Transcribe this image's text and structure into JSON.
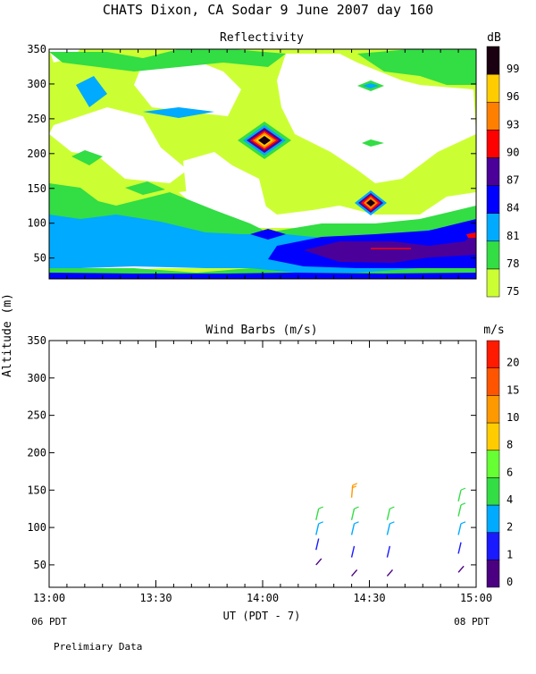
{
  "header": {
    "title": "CHATS Dixon, CA  Sodar   9 June 2007   day 160",
    "preliminary": "Prelimiary Data"
  },
  "chart_data": [
    {
      "type": "heatmap",
      "title": "Reflectivity",
      "ylabel": "Altitude (m)",
      "ylim": [
        20,
        350
      ],
      "yticks": [
        "50",
        "100",
        "150",
        "200",
        "250",
        "300",
        "350"
      ],
      "x_time_range": [
        "13:00",
        "15:00"
      ],
      "colorbar": {
        "unit": "dB",
        "levels": [
          "75",
          "78",
          "81",
          "84",
          "87",
          "90",
          "93",
          "96",
          "99"
        ],
        "colors": [
          "#ccff33",
          "#33dd44",
          "#00aaff",
          "#0000ff",
          "#4b0099",
          "#ff0000",
          "#ff8000",
          "#ffcc00",
          "#1a0010"
        ]
      },
      "features": [
        {
          "time": "14:00",
          "altitude": 220,
          "peak_db": 99
        },
        {
          "time": "14:30",
          "altitude": 140,
          "peak_db": 99
        },
        {
          "time": "14:30",
          "altitude": 80,
          "peak_db": 90
        },
        {
          "time": "15:00",
          "altitude": 100,
          "peak_db": 90
        }
      ]
    },
    {
      "type": "scatter",
      "title": "Wind Barbs (m/s)",
      "ylabel": "Altitude (m)",
      "xlabel": "UT  (PDT - 7)",
      "ylim": [
        20,
        350
      ],
      "yticks": [
        "50",
        "100",
        "150",
        "200",
        "250",
        "300",
        "350"
      ],
      "xticks": [
        "13:00",
        "13:30",
        "14:00",
        "14:30",
        "15:00"
      ],
      "x_sublabels": {
        "left": "06 PDT",
        "right": "08 PDT"
      },
      "colorbar": {
        "unit": "m/s",
        "levels": [
          "0",
          "1",
          "2",
          "4",
          "6",
          "8",
          "10",
          "15",
          "20"
        ],
        "colors": [
          "#4b0082",
          "#1a1aff",
          "#00aaff",
          "#33dd44",
          "#66ff33",
          "#ffcc00",
          "#ff9900",
          "#ff5500",
          "#ff1a00"
        ]
      },
      "barbs": [
        {
          "time": "14:15",
          "altitude": 110,
          "speed": 5
        },
        {
          "time": "14:15",
          "altitude": 90,
          "speed": 2
        },
        {
          "time": "14:15",
          "altitude": 70,
          "speed": 1
        },
        {
          "time": "14:15",
          "altitude": 50,
          "speed": 0
        },
        {
          "time": "14:25",
          "altitude": 140,
          "speed": 12
        },
        {
          "time": "14:25",
          "altitude": 110,
          "speed": 5
        },
        {
          "time": "14:25",
          "altitude": 90,
          "speed": 2
        },
        {
          "time": "14:25",
          "altitude": 60,
          "speed": 1
        },
        {
          "time": "14:25",
          "altitude": 35,
          "speed": 0
        },
        {
          "time": "14:35",
          "altitude": 110,
          "speed": 5
        },
        {
          "time": "14:35",
          "altitude": 90,
          "speed": 3
        },
        {
          "time": "14:35",
          "altitude": 60,
          "speed": 1
        },
        {
          "time": "14:35",
          "altitude": 35,
          "speed": 0
        },
        {
          "time": "14:55",
          "altitude": 135,
          "speed": 5
        },
        {
          "time": "14:55",
          "altitude": 115,
          "speed": 5
        },
        {
          "time": "14:55",
          "altitude": 90,
          "speed": 3
        },
        {
          "time": "14:55",
          "altitude": 65,
          "speed": 1
        },
        {
          "time": "14:55",
          "altitude": 40,
          "speed": 0
        }
      ]
    }
  ]
}
